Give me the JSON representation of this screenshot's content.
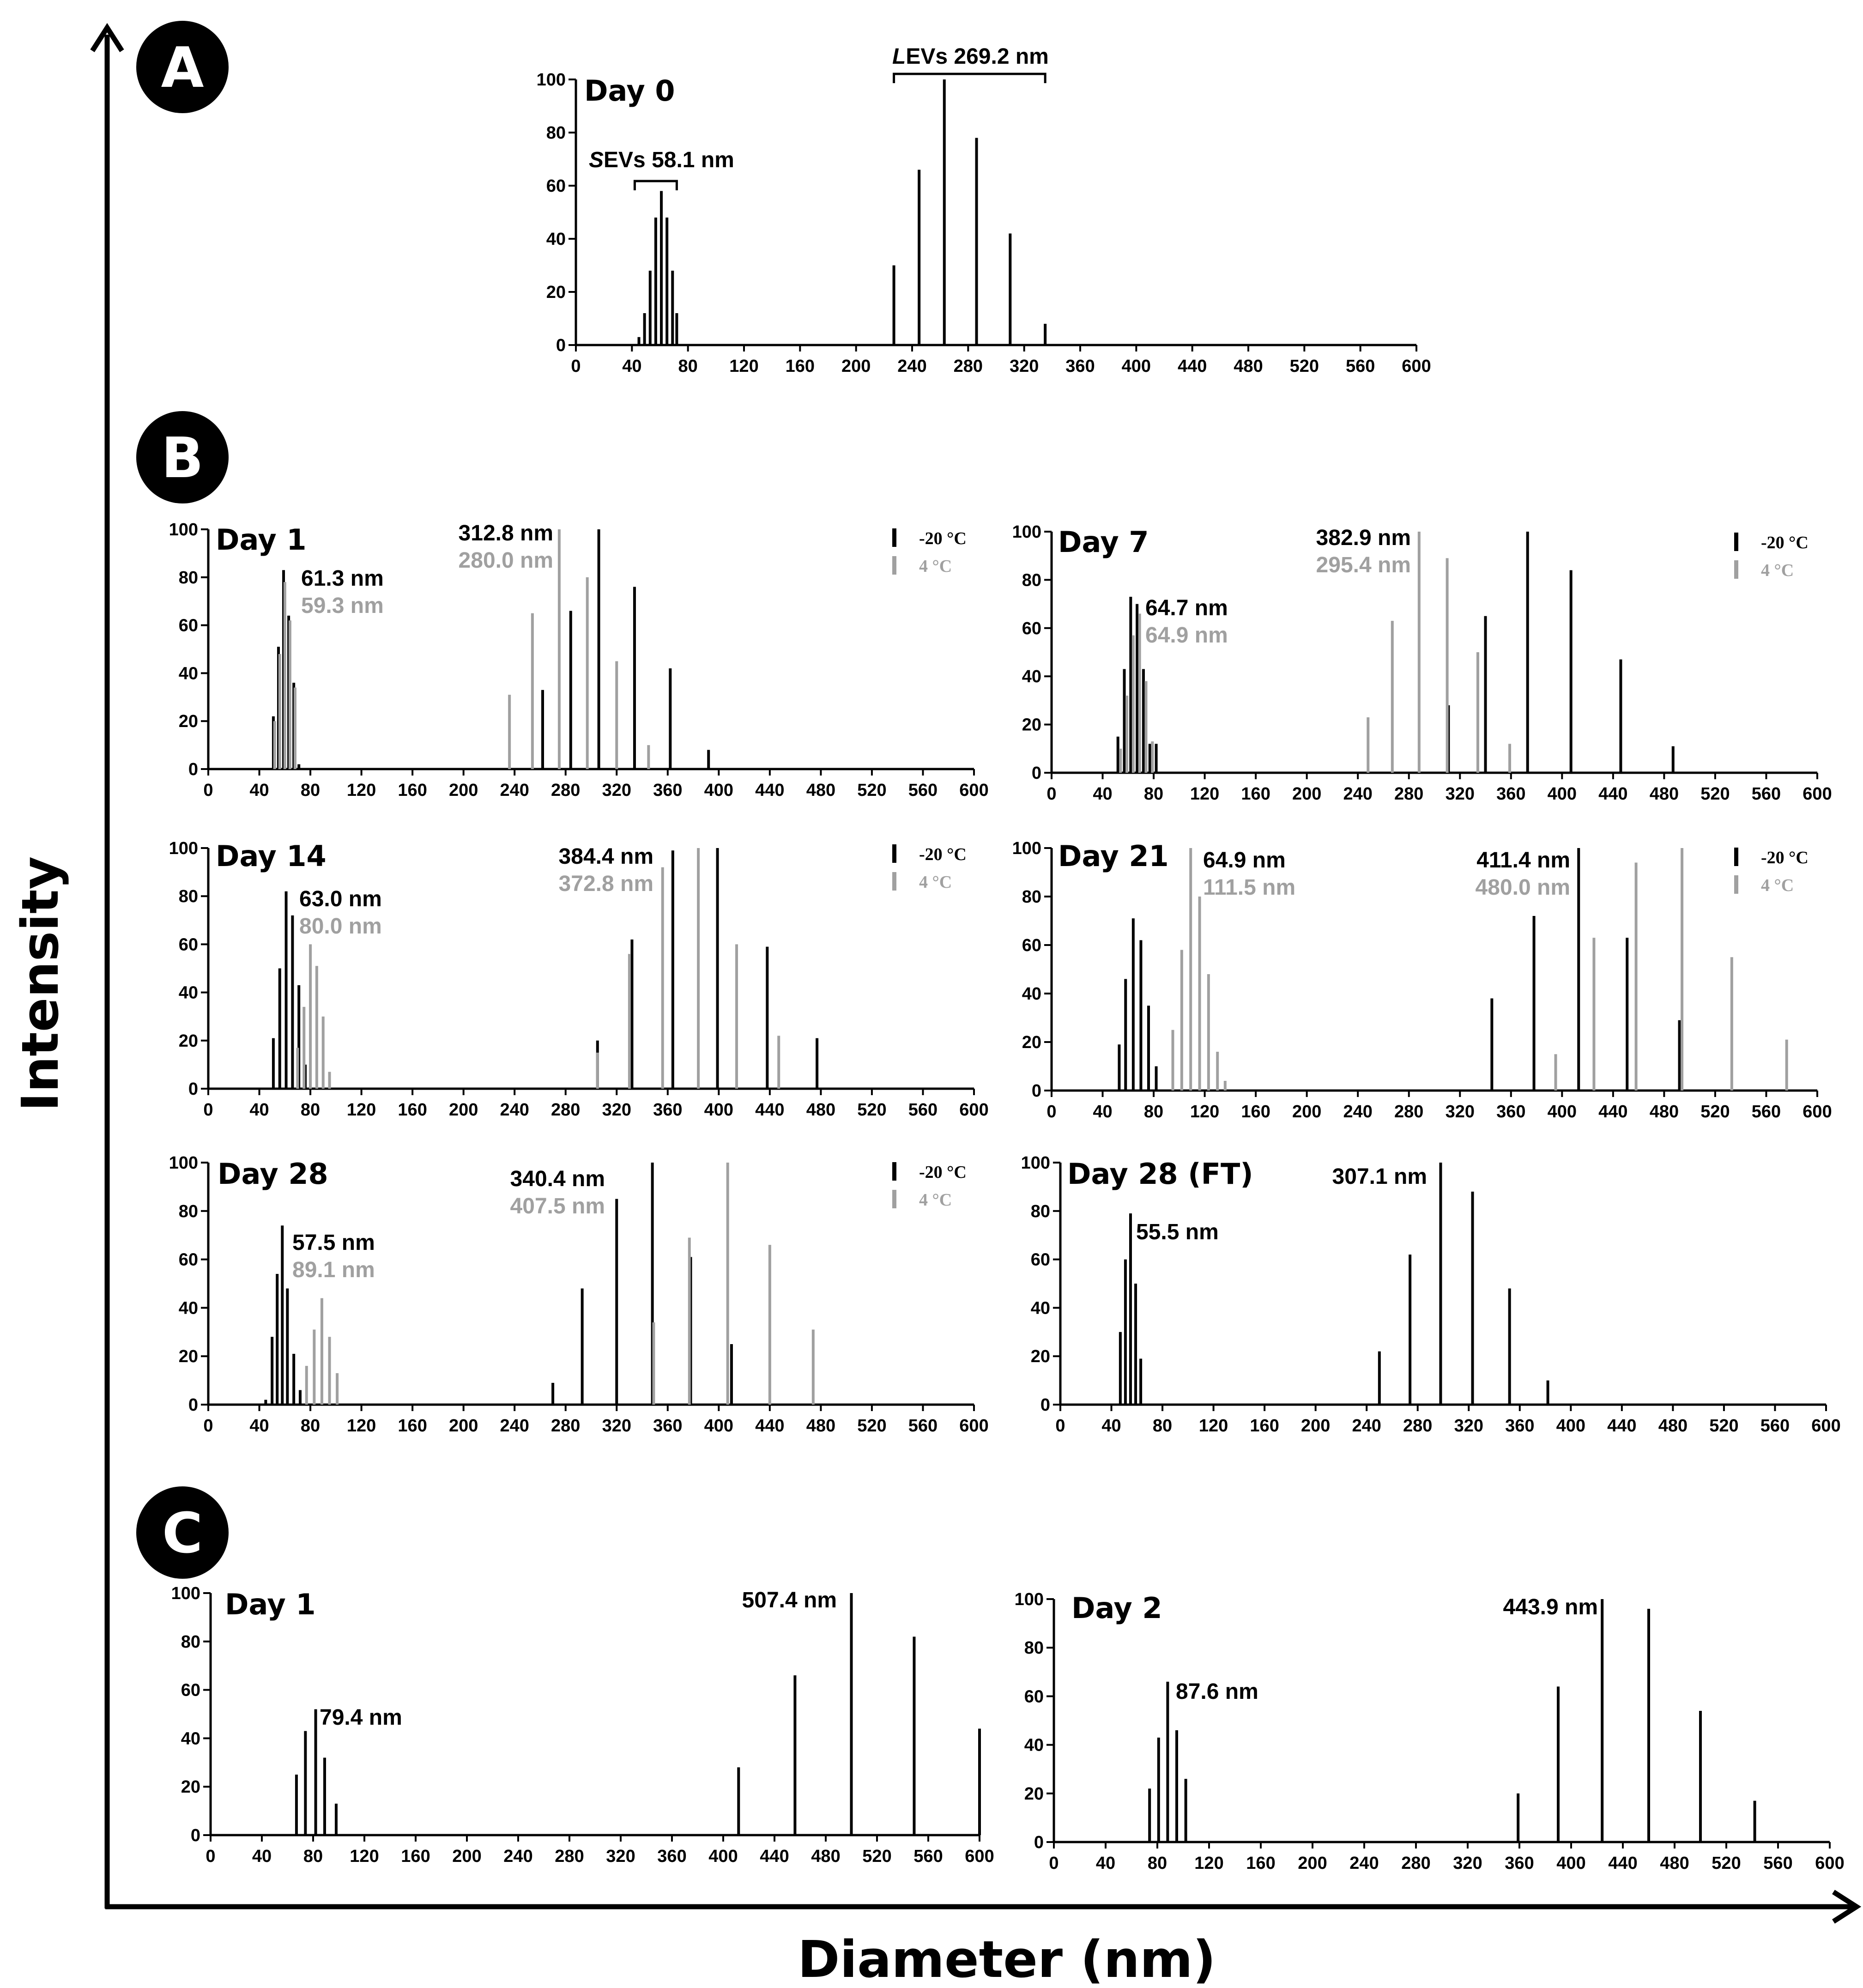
{
  "figure": {
    "ylabel": "Intensity",
    "xlabel": "Diameter (nm)",
    "panels": {
      "A": "A",
      "B": "B",
      "C": "C"
    },
    "colors": {
      "neg20": "#000000",
      "pos4": "#a0a0a0"
    }
  },
  "chart_data": [
    {
      "id": "A-day0",
      "type": "bar",
      "title": "Day 0",
      "xlim": [
        0,
        600
      ],
      "ylim": [
        0,
        100
      ],
      "xticks": [
        0,
        40,
        80,
        120,
        160,
        200,
        240,
        280,
        320,
        360,
        400,
        440,
        480,
        520,
        560,
        600
      ],
      "yticks": [
        0,
        20,
        40,
        60,
        80,
        100
      ],
      "series": [
        {
          "name": "",
          "color": "#000000",
          "x": [
            45,
            49,
            53,
            57,
            61,
            65,
            69,
            72,
            227,
            245,
            263,
            286,
            310,
            335
          ],
          "values": [
            3,
            12,
            28,
            48,
            58,
            48,
            28,
            12,
            30,
            66,
            100,
            78,
            42,
            8
          ]
        }
      ],
      "annotations": [
        {
          "text": "SEVs 58.1 nm",
          "color": "#000000",
          "bracket": [
            42,
            72
          ]
        },
        {
          "text": "LEVs 269.2 nm",
          "color": "#000000",
          "bracket": [
            227,
            335
          ]
        }
      ],
      "legend": []
    },
    {
      "id": "B-day1",
      "type": "bar",
      "title": "Day 1",
      "xlim": [
        0,
        600
      ],
      "ylim": [
        0,
        100
      ],
      "xticks": [
        0,
        40,
        80,
        120,
        160,
        200,
        240,
        280,
        320,
        360,
        400,
        440,
        480,
        520,
        560,
        600
      ],
      "yticks": [
        0,
        20,
        40,
        60,
        80,
        100
      ],
      "series": [
        {
          "name": "-20 °C",
          "color": "#000000",
          "x": [
            51,
            55,
            59,
            63,
            67,
            71,
            262,
            284,
            306,
            334,
            362,
            392
          ],
          "values": [
            22,
            51,
            83,
            64,
            36,
            2,
            33,
            66,
            100,
            76,
            42,
            8
          ]
        },
        {
          "name": "4 °C",
          "color": "#a0a0a0",
          "x": [
            52,
            56,
            60,
            64,
            68,
            236,
            254,
            275,
            297,
            320,
            345
          ],
          "values": [
            20,
            48,
            78,
            62,
            34,
            31,
            65,
            100,
            80,
            45,
            10
          ]
        }
      ],
      "annotations": [
        {
          "text": "61.3 nm",
          "color": "#000000"
        },
        {
          "text": "59.3 nm",
          "color": "#a0a0a0"
        },
        {
          "text": "312.8 nm",
          "color": "#000000"
        },
        {
          "text": "280.0 nm",
          "color": "#a0a0a0"
        }
      ],
      "legend": [
        "-20 °C",
        "4 °C"
      ]
    },
    {
      "id": "B-day7",
      "type": "bar",
      "title": "Day 7",
      "xlim": [
        0,
        600
      ],
      "ylim": [
        0,
        100
      ],
      "xticks": [
        0,
        40,
        80,
        120,
        160,
        200,
        240,
        280,
        320,
        360,
        400,
        440,
        480,
        520,
        560,
        600
      ],
      "yticks": [
        0,
        20,
        40,
        60,
        80,
        100
      ],
      "series": [
        {
          "name": "-20 °C",
          "color": "#000000",
          "x": [
            52,
            57,
            62,
            67,
            72,
            77,
            82,
            311,
            340,
            373,
            407,
            446,
            487
          ],
          "values": [
            15,
            43,
            73,
            70,
            43,
            12,
            12,
            28,
            65,
            100,
            84,
            47,
            11
          ]
        },
        {
          "name": "4 °C",
          "color": "#a0a0a0",
          "x": [
            54,
            59,
            64,
            69,
            74,
            79,
            248,
            267,
            288,
            310,
            334,
            359
          ],
          "values": [
            10,
            32,
            57,
            66,
            38,
            13,
            23,
            63,
            100,
            89,
            50,
            12
          ]
        }
      ],
      "annotations": [
        {
          "text": "64.7 nm",
          "color": "#000000"
        },
        {
          "text": "64.9 nm",
          "color": "#a0a0a0"
        },
        {
          "text": "382.9 nm",
          "color": "#000000"
        },
        {
          "text": "295.4 nm",
          "color": "#a0a0a0"
        }
      ],
      "legend": [
        "-20 °C",
        "4 °C"
      ]
    },
    {
      "id": "B-day14",
      "type": "bar",
      "title": "Day 14",
      "xlim": [
        0,
        600
      ],
      "ylim": [
        0,
        100
      ],
      "xticks": [
        0,
        40,
        80,
        120,
        160,
        200,
        240,
        280,
        320,
        360,
        400,
        440,
        480,
        520,
        560,
        600
      ],
      "yticks": [
        0,
        20,
        40,
        60,
        80,
        100
      ],
      "series": [
        {
          "name": "-20 °C",
          "color": "#000000",
          "x": [
            51,
            56,
            61,
            66,
            71,
            76,
            305,
            332,
            364,
            399,
            438,
            477
          ],
          "values": [
            21,
            50,
            82,
            72,
            43,
            10,
            20,
            62,
            99,
            100,
            59,
            21
          ]
        },
        {
          "name": "4 °C",
          "color": "#a0a0a0",
          "x": [
            70,
            75,
            80,
            85,
            90,
            95,
            305,
            330,
            356,
            384,
            414,
            447
          ],
          "values": [
            17,
            34,
            60,
            51,
            30,
            7,
            15,
            56,
            92,
            100,
            60,
            22
          ]
        }
      ],
      "annotations": [
        {
          "text": "63.0 nm",
          "color": "#000000"
        },
        {
          "text": "80.0 nm",
          "color": "#a0a0a0"
        },
        {
          "text": "384.4 nm",
          "color": "#000000"
        },
        {
          "text": "372.8 nm",
          "color": "#a0a0a0"
        }
      ],
      "legend": [
        "-20 °C",
        "4 °C"
      ]
    },
    {
      "id": "B-day21",
      "type": "bar",
      "title": "Day 21",
      "xlim": [
        0,
        600
      ],
      "ylim": [
        0,
        100
      ],
      "xticks": [
        0,
        40,
        80,
        120,
        160,
        200,
        240,
        280,
        320,
        360,
        400,
        440,
        480,
        520,
        560,
        600
      ],
      "yticks": [
        0,
        20,
        40,
        60,
        80,
        100
      ],
      "series": [
        {
          "name": "-20 °C",
          "color": "#000000",
          "x": [
            53,
            58,
            64,
            70,
            76,
            82,
            345,
            378,
            413,
            451,
            492
          ],
          "values": [
            19,
            46,
            71,
            62,
            35,
            10,
            38,
            72,
            100,
            63,
            29
          ]
        },
        {
          "name": "4 °C",
          "color": "#a0a0a0",
          "x": [
            95,
            102,
            109,
            116,
            123,
            130,
            136,
            395,
            425,
            458,
            494,
            533,
            576
          ],
          "values": [
            25,
            58,
            100,
            80,
            48,
            16,
            4,
            15,
            63,
            94,
            100,
            55,
            21
          ]
        }
      ],
      "annotations": [
        {
          "text": "64.9 nm",
          "color": "#000000"
        },
        {
          "text": "111.5 nm",
          "color": "#a0a0a0"
        },
        {
          "text": "411.4 nm",
          "color": "#000000"
        },
        {
          "text": "480.0 nm",
          "color": "#a0a0a0"
        }
      ],
      "legend": [
        "-20 °C",
        "4 °C"
      ]
    },
    {
      "id": "B-day28",
      "type": "bar",
      "title": "Day 28",
      "xlim": [
        0,
        600
      ],
      "ylim": [
        0,
        100
      ],
      "xticks": [
        0,
        40,
        80,
        120,
        160,
        200,
        240,
        280,
        320,
        360,
        400,
        440,
        480,
        520,
        560,
        600
      ],
      "yticks": [
        0,
        20,
        40,
        60,
        80,
        100
      ],
      "series": [
        {
          "name": "-20 °C",
          "color": "#000000",
          "x": [
            45,
            50,
            54,
            58,
            62,
            67,
            72,
            270,
            293,
            320,
            348,
            378,
            410
          ],
          "values": [
            2,
            28,
            54,
            74,
            48,
            21,
            6,
            9,
            48,
            85,
            100,
            61,
            25
          ]
        },
        {
          "name": "4 °C",
          "color": "#a0a0a0",
          "x": [
            77,
            83,
            89,
            95,
            101,
            349,
            377,
            407,
            440,
            474
          ],
          "values": [
            16,
            31,
            44,
            28,
            13,
            34,
            69,
            100,
            66,
            31
          ]
        }
      ],
      "annotations": [
        {
          "text": "57.5 nm",
          "color": "#000000"
        },
        {
          "text": "89.1 nm",
          "color": "#a0a0a0"
        },
        {
          "text": "340.4 nm",
          "color": "#000000"
        },
        {
          "text": "407.5 nm",
          "color": "#a0a0a0"
        }
      ],
      "legend": [
        "-20 °C",
        "4 °C"
      ]
    },
    {
      "id": "B-day28ft",
      "type": "bar",
      "title": "Day 28 (FT)",
      "xlim": [
        0,
        600
      ],
      "ylim": [
        0,
        100
      ],
      "xticks": [
        0,
        40,
        80,
        120,
        160,
        200,
        240,
        280,
        320,
        360,
        400,
        440,
        480,
        520,
        560,
        600
      ],
      "yticks": [
        0,
        20,
        40,
        60,
        80,
        100
      ],
      "series": [
        {
          "name": "",
          "color": "#000000",
          "x": [
            47,
            51,
            55,
            59,
            63,
            250,
            274,
            298,
            323,
            352,
            382
          ],
          "values": [
            30,
            60,
            79,
            50,
            19,
            22,
            62,
            100,
            88,
            48,
            10
          ]
        }
      ],
      "annotations": [
        {
          "text": "55.5 nm",
          "color": "#000000"
        },
        {
          "text": "307.1 nm",
          "color": "#000000"
        }
      ],
      "legend": []
    },
    {
      "id": "C-day1",
      "type": "bar",
      "title": "Day 1",
      "xlim": [
        0,
        600
      ],
      "ylim": [
        0,
        100
      ],
      "xticks": [
        0,
        40,
        80,
        120,
        160,
        200,
        240,
        280,
        320,
        360,
        400,
        440,
        480,
        520,
        560,
        600
      ],
      "yticks": [
        0,
        20,
        40,
        60,
        80,
        100
      ],
      "series": [
        {
          "name": "",
          "color": "#000000",
          "x": [
            67,
            74,
            82,
            89,
            98,
            412,
            456,
            500,
            549,
            600
          ],
          "values": [
            25,
            43,
            52,
            32,
            13,
            28,
            66,
            100,
            82,
            44
          ]
        }
      ],
      "annotations": [
        {
          "text": "79.4 nm",
          "color": "#000000"
        },
        {
          "text": "507.4 nm",
          "color": "#000000"
        }
      ],
      "legend": []
    },
    {
      "id": "C-day2",
      "type": "bar",
      "title": "Day 2",
      "xlim": [
        0,
        600
      ],
      "ylim": [
        0,
        100
      ],
      "xticks": [
        0,
        40,
        80,
        120,
        160,
        200,
        240,
        280,
        320,
        360,
        400,
        440,
        480,
        520,
        560,
        600
      ],
      "yticks": [
        0,
        20,
        40,
        60,
        80,
        100
      ],
      "series": [
        {
          "name": "",
          "color": "#000000",
          "x": [
            74,
            81,
            88,
            95,
            102,
            359,
            390,
            424,
            460,
            500,
            542
          ],
          "values": [
            22,
            43,
            66,
            46,
            26,
            20,
            64,
            100,
            96,
            54,
            17
          ]
        }
      ],
      "annotations": [
        {
          "text": "87.6 nm",
          "color": "#000000"
        },
        {
          "text": "443.9 nm",
          "color": "#000000"
        }
      ],
      "legend": []
    }
  ]
}
